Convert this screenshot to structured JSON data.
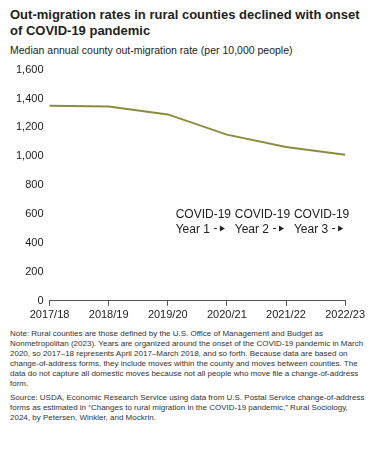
{
  "chart_data": {
    "type": "line",
    "title": "Out-migration rates in rural counties declined with onset of COVID-19 pandemic",
    "subtitle": "Median annual county out-migration rate (per 10,000 people)",
    "categories": [
      "2017/18",
      "2018/19",
      "2019/20",
      "2020/21",
      "2021/22",
      "2022/23"
    ],
    "values": [
      1350,
      1345,
      1290,
      1150,
      1065,
      1010
    ],
    "color": "#8c8c3e",
    "ylim": [
      0,
      1600
    ],
    "yticks": [
      0,
      200,
      400,
      600,
      800,
      {
        "value": 1000,
        "label": "1,000"
      },
      {
        "value": 1200,
        "label": "1,200"
      },
      {
        "value": 1400,
        "label": "1,400"
      },
      {
        "value": 1600,
        "label": "1,600"
      }
    ],
    "grid": false,
    "annotations": [
      {
        "text": "COVID-19 Year 1",
        "x": "2020/21"
      },
      {
        "text": "COVID-19 Year 2",
        "x": "2021/22"
      },
      {
        "text": "COVID-19 Year 3",
        "x": "2022/23"
      }
    ],
    "note": "Note: Rural counties are those defined by the U.S. Office of Management and Budget as Nonmetropolitan (2023). Years are organized around the onset of the COVID-19 pandemic in March 2020, so 2017–18 represents April 2017–March 2018, and so forth. Because data are based on change-of-address forms, they include moves within the county and moves between counties. The data do not capture all domestic moves because not all people who move file a change-of-address form.",
    "source": "Source: USDA, Economic Research Service using data from U.S. Postal Service change-of-address forms as estimated in “Changes to rural migration in the COVID-19 pandemic,” Rural Sociology, 2024, by Petersen, Winkler, and Mockrin."
  }
}
